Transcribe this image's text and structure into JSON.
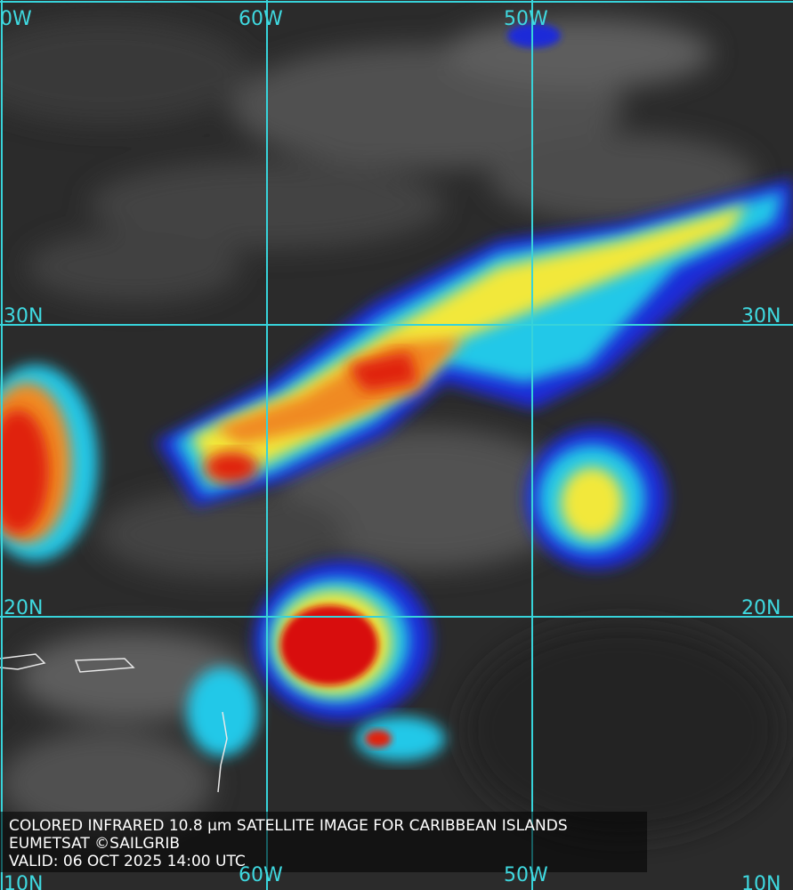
{
  "map": {
    "longitude_labels_top": [
      "0W",
      "60W",
      "50W"
    ],
    "longitude_labels_bottom": [
      "60W",
      "50W"
    ],
    "latitude_labels_left": [
      "30N",
      "20N",
      "10N"
    ],
    "latitude_labels_right": [
      "30N",
      "20N",
      "10N"
    ]
  },
  "caption": {
    "line1": "COLORED INFRARED 10.8 µm SATELLITE IMAGE FOR CARIBBEAN ISLANDS",
    "line2": "EUMETSAT ©SAILGRIB",
    "line3": "VALID:  06 OCT 2025 14:00 UTC"
  }
}
